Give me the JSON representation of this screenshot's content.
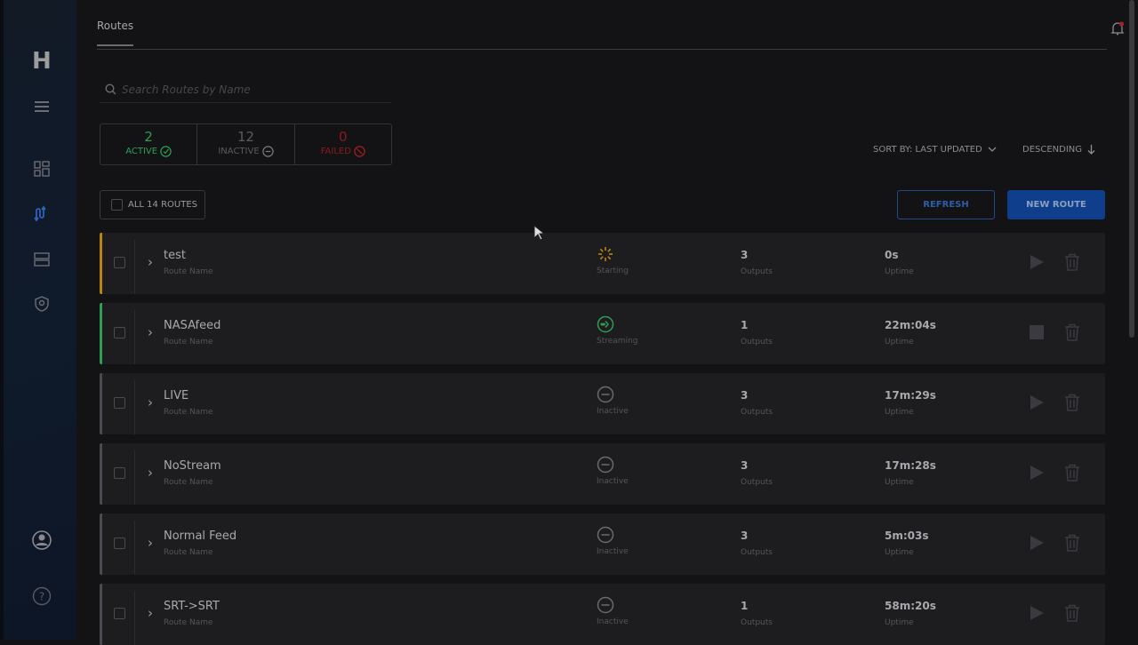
{
  "header": {
    "tab": "Routes"
  },
  "sidebar": {
    "logo": "H",
    "items": [
      "menu",
      "dashboard",
      "routes",
      "devices",
      "security",
      "account",
      "help"
    ],
    "active": "routes"
  },
  "search": {
    "placeholder": "Search Routes by Name",
    "value": ""
  },
  "stats": [
    {
      "count": "2",
      "label": "ACTIVE",
      "color": "#2e9e55",
      "icon": "check-circle-icon"
    },
    {
      "count": "12",
      "label": "INACTIVE",
      "color": "#6c6c72",
      "icon": "minus-circle-icon"
    },
    {
      "count": "0",
      "label": "FAILED",
      "color": "#a02020",
      "icon": "ban-circle-icon"
    }
  ],
  "sort": {
    "by": "SORT BY: LAST UPDATED",
    "order": "DESCENDING"
  },
  "toolbar": {
    "all_label": "ALL 14 ROUTES",
    "refresh": "REFRESH",
    "new_route": "NEW ROUTE"
  },
  "colors": {
    "accent": "#0f3f8c",
    "starting": "#b8860b",
    "streaming": "#2e9e55",
    "inactive": "#55555a"
  },
  "labels": {
    "route_name": "Route Name",
    "outputs": "Outputs",
    "uptime": "Uptime"
  },
  "routes": [
    {
      "name": "test",
      "status": "Starting",
      "outputs": "3",
      "uptime": "0s",
      "action": "play"
    },
    {
      "name": "NASAfeed",
      "status": "Streaming",
      "outputs": "1",
      "uptime": "22m:04s",
      "action": "stop"
    },
    {
      "name": "LIVE",
      "status": "Inactive",
      "outputs": "3",
      "uptime": "17m:29s",
      "action": "play"
    },
    {
      "name": "NoStream",
      "status": "Inactive",
      "outputs": "3",
      "uptime": "17m:28s",
      "action": "play"
    },
    {
      "name": "Normal Feed",
      "status": "Inactive",
      "outputs": "3",
      "uptime": "5m:03s",
      "action": "play"
    },
    {
      "name": "SRT->SRT",
      "status": "Inactive",
      "outputs": "1",
      "uptime": "58m:20s",
      "action": "play"
    }
  ]
}
